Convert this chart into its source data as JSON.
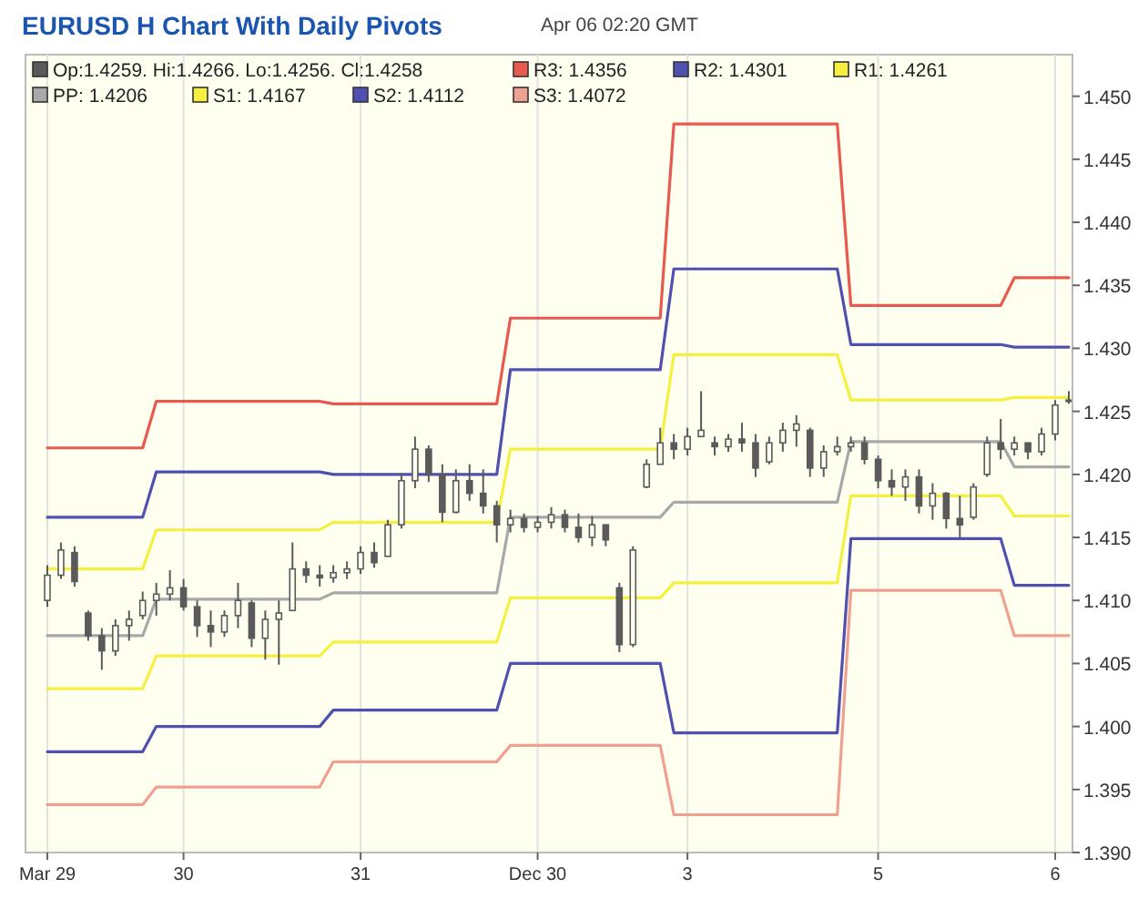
{
  "chart_data": {
    "type": "candlestick",
    "title": "EURUSD H Chart With Daily Pivots",
    "subtitle": "Apr 06 02:20 GMT",
    "categories": [
      "Mar 29",
      null,
      null,
      null,
      null,
      null,
      null,
      null,
      null,
      null,
      "30",
      null,
      null,
      null,
      null,
      null,
      null,
      null,
      null,
      null,
      null,
      null,
      null,
      "31",
      null,
      null,
      null,
      null,
      null,
      null,
      null,
      null,
      null,
      null,
      null,
      null,
      "Dec 30",
      null,
      null,
      null,
      null,
      null,
      null,
      null,
      null,
      null,
      null,
      "3",
      null,
      null,
      null,
      null,
      null,
      null,
      null,
      null,
      null,
      null,
      null,
      null,
      null,
      "5",
      null,
      null,
      null,
      null,
      null,
      null,
      null,
      null,
      null,
      null,
      null,
      null,
      "6",
      null
    ],
    "ylim": [
      1.39,
      1.4533
    ],
    "yticks": [
      {
        "value": 1.39,
        "label": "1.390"
      },
      {
        "value": 1.395,
        "label": "1.395"
      },
      {
        "value": 1.4,
        "label": "1.400"
      },
      {
        "value": 1.405,
        "label": "1.405"
      },
      {
        "value": 1.41,
        "label": "1.410"
      },
      {
        "value": 1.415,
        "label": "1.415"
      },
      {
        "value": 1.42,
        "label": "1.420"
      },
      {
        "value": 1.425,
        "label": "1.425"
      },
      {
        "value": 1.43,
        "label": "1.430"
      },
      {
        "value": 1.435,
        "label": "1.435"
      },
      {
        "value": 1.44,
        "label": "1.440"
      },
      {
        "value": 1.445,
        "label": "1.445"
      },
      {
        "value": 1.45,
        "label": "1.450"
      }
    ],
    "grid": "x",
    "legend": "top",
    "series": [
      {
        "name": "Op:1.4259. Hi:1.4266. Lo:1.4256. Cl:1.4258",
        "color": "#5a5a5a",
        "ohlc": [
          [
            1.41,
            1.4128,
            1.4095,
            1.412
          ],
          [
            1.412,
            1.4146,
            1.4117,
            1.414
          ],
          [
            1.4138,
            1.4143,
            1.4111,
            1.4115
          ],
          [
            1.409,
            1.4092,
            1.4068,
            1.4072
          ],
          [
            1.4072,
            1.4078,
            1.4045,
            1.406
          ],
          [
            1.406,
            1.4085,
            1.4056,
            1.408
          ],
          [
            1.408,
            1.4092,
            1.4068,
            1.4085
          ],
          [
            1.4088,
            1.4107,
            1.4085,
            1.41
          ],
          [
            1.41,
            1.4114,
            1.4088,
            1.4105
          ],
          [
            1.4105,
            1.4124,
            1.41,
            1.411
          ],
          [
            1.411,
            1.4117,
            1.4092,
            1.4095
          ],
          [
            1.4095,
            1.41,
            1.4071,
            1.408
          ],
          [
            1.408,
            1.4092,
            1.4063,
            1.4075
          ],
          [
            1.4075,
            1.4092,
            1.4071,
            1.4088
          ],
          [
            1.4088,
            1.4114,
            1.4078,
            1.41
          ],
          [
            1.4098,
            1.41,
            1.4063,
            1.407
          ],
          [
            1.407,
            1.4092,
            1.4053,
            1.4085
          ],
          [
            1.4085,
            1.41,
            1.4049,
            1.409
          ],
          [
            1.4092,
            1.4146,
            1.4092,
            1.4125
          ],
          [
            1.4125,
            1.4131,
            1.4114,
            1.412
          ],
          [
            1.412,
            1.4128,
            1.4111,
            1.4118
          ],
          [
            1.4118,
            1.4128,
            1.4114,
            1.4122
          ],
          [
            1.4122,
            1.4131,
            1.4117,
            1.4125
          ],
          [
            1.4125,
            1.4143,
            1.4121,
            1.4138
          ],
          [
            1.4138,
            1.4146,
            1.4126,
            1.413
          ],
          [
            1.4135,
            1.4164,
            1.4135,
            1.416
          ],
          [
            1.416,
            1.4201,
            1.4157,
            1.4195
          ],
          [
            1.4195,
            1.423,
            1.4189,
            1.422
          ],
          [
            1.422,
            1.4223,
            1.4194,
            1.42
          ],
          [
            1.42,
            1.4208,
            1.4162,
            1.417
          ],
          [
            1.417,
            1.4204,
            1.4169,
            1.4195
          ],
          [
            1.4195,
            1.4208,
            1.4179,
            1.4185
          ],
          [
            1.4185,
            1.4204,
            1.4169,
            1.4175
          ],
          [
            1.4175,
            1.4179,
            1.4146,
            1.416
          ],
          [
            1.416,
            1.4172,
            1.4154,
            1.4165
          ],
          [
            1.4165,
            1.4169,
            1.4154,
            1.4158
          ],
          [
            1.4158,
            1.4167,
            1.4154,
            1.4162
          ],
          [
            1.4162,
            1.4174,
            1.4157,
            1.4168
          ],
          [
            1.4168,
            1.4172,
            1.4154,
            1.4158
          ],
          [
            1.4158,
            1.4169,
            1.4146,
            1.415
          ],
          [
            1.415,
            1.4167,
            1.4143,
            1.416
          ],
          [
            1.416,
            1.416,
            1.4143,
            1.4148
          ],
          [
            1.411,
            1.4114,
            1.4059,
            1.4065
          ],
          [
            1.4065,
            1.4143,
            1.4063,
            1.414
          ],
          [
            1.419,
            1.4212,
            1.4189,
            1.4208
          ],
          [
            1.4208,
            1.4237,
            1.4208,
            1.4225
          ],
          [
            1.4225,
            1.4232,
            1.4212,
            1.422
          ],
          [
            1.422,
            1.4237,
            1.4215,
            1.423
          ],
          [
            1.423,
            1.4266,
            1.423,
            1.4235
          ],
          [
            1.4225,
            1.423,
            1.4215,
            1.4222
          ],
          [
            1.4222,
            1.4232,
            1.4218,
            1.4228
          ],
          [
            1.4228,
            1.4241,
            1.4218,
            1.4225
          ],
          [
            1.4225,
            1.4232,
            1.4198,
            1.4205
          ],
          [
            1.421,
            1.423,
            1.4208,
            1.4225
          ],
          [
            1.4225,
            1.4241,
            1.4218,
            1.4235
          ],
          [
            1.4235,
            1.4247,
            1.4222,
            1.424
          ],
          [
            1.4235,
            1.4237,
            1.4198,
            1.4205
          ],
          [
            1.4205,
            1.4223,
            1.4198,
            1.4218
          ],
          [
            1.4218,
            1.423,
            1.4215,
            1.4222
          ],
          [
            1.4222,
            1.423,
            1.4218,
            1.4225
          ],
          [
            1.4225,
            1.423,
            1.4208,
            1.4212
          ],
          [
            1.4212,
            1.4215,
            1.4189,
            1.4195
          ],
          [
            1.4195,
            1.4204,
            1.4183,
            1.419
          ],
          [
            1.419,
            1.4204,
            1.4179,
            1.4198
          ],
          [
            1.4198,
            1.4204,
            1.4169,
            1.4175
          ],
          [
            1.4175,
            1.4193,
            1.4164,
            1.4185
          ],
          [
            1.4185,
            1.4186,
            1.4157,
            1.4165
          ],
          [
            1.4165,
            1.4183,
            1.415,
            1.416
          ],
          [
            1.4166,
            1.4193,
            1.4164,
            1.419
          ],
          [
            1.42,
            1.423,
            1.4198,
            1.4225
          ],
          [
            1.4225,
            1.4244,
            1.4212,
            1.422
          ],
          [
            1.422,
            1.423,
            1.4215,
            1.4225
          ],
          [
            1.4225,
            1.4225,
            1.4212,
            1.4218
          ],
          [
            1.4218,
            1.4237,
            1.4215,
            1.4232
          ],
          [
            1.4232,
            1.4259,
            1.4227,
            1.4255
          ],
          [
            1.4259,
            1.4266,
            1.4256,
            1.4258
          ]
        ]
      },
      {
        "type": "line",
        "name": "R3: 1.4356",
        "color": "#e85a50",
        "values": [
          1.4221,
          1.4221,
          1.4221,
          1.4221,
          1.4221,
          1.4221,
          1.4221,
          1.4221,
          1.4258,
          1.4258,
          1.4258,
          1.4258,
          1.4258,
          1.4258,
          1.4258,
          1.4258,
          1.4258,
          1.4258,
          1.4258,
          1.4258,
          1.4258,
          1.4256,
          1.4256,
          1.4256,
          1.4256,
          1.4256,
          1.4256,
          1.4256,
          1.4256,
          1.4256,
          1.4256,
          1.4256,
          1.4256,
          1.4256,
          1.4324,
          1.4324,
          1.4324,
          1.4324,
          1.4324,
          1.4324,
          1.4324,
          1.4324,
          1.4324,
          1.4324,
          1.4324,
          1.4324,
          1.4478,
          1.4478,
          1.4478,
          1.4478,
          1.4478,
          1.4478,
          1.4478,
          1.4478,
          1.4478,
          1.4478,
          1.4478,
          1.4478,
          1.4478,
          1.4334,
          1.4334,
          1.4334,
          1.4334,
          1.4334,
          1.4334,
          1.4334,
          1.4334,
          1.4334,
          1.4334,
          1.4334,
          1.4334,
          1.4356,
          1.4356,
          1.4356,
          1.4356,
          1.4356
        ]
      },
      {
        "type": "line",
        "name": "R2: 1.4301",
        "color": "#5050b0",
        "values": [
          1.4166,
          1.4166,
          1.4166,
          1.4166,
          1.4166,
          1.4166,
          1.4166,
          1.4166,
          1.4202,
          1.4202,
          1.4202,
          1.4202,
          1.4202,
          1.4202,
          1.4202,
          1.4202,
          1.4202,
          1.4202,
          1.4202,
          1.4202,
          1.4202,
          1.42,
          1.42,
          1.42,
          1.42,
          1.42,
          1.42,
          1.42,
          1.42,
          1.42,
          1.42,
          1.42,
          1.42,
          1.42,
          1.4283,
          1.4283,
          1.4283,
          1.4283,
          1.4283,
          1.4283,
          1.4283,
          1.4283,
          1.4283,
          1.4283,
          1.4283,
          1.4283,
          1.4363,
          1.4363,
          1.4363,
          1.4363,
          1.4363,
          1.4363,
          1.4363,
          1.4363,
          1.4363,
          1.4363,
          1.4363,
          1.4363,
          1.4363,
          1.4303,
          1.4303,
          1.4303,
          1.4303,
          1.4303,
          1.4303,
          1.4303,
          1.4303,
          1.4303,
          1.4303,
          1.4303,
          1.4303,
          1.4301,
          1.4301,
          1.4301,
          1.4301,
          1.4301
        ]
      },
      {
        "type": "line",
        "name": "R1: 1.4261",
        "color": "#f5f040",
        "values": [
          1.4125,
          1.4125,
          1.4125,
          1.4125,
          1.4125,
          1.4125,
          1.4125,
          1.4125,
          1.4156,
          1.4156,
          1.4156,
          1.4156,
          1.4156,
          1.4156,
          1.4156,
          1.4156,
          1.4156,
          1.4156,
          1.4156,
          1.4156,
          1.4156,
          1.4162,
          1.4162,
          1.4162,
          1.4162,
          1.4162,
          1.4162,
          1.4162,
          1.4162,
          1.4162,
          1.4162,
          1.4162,
          1.4162,
          1.4162,
          1.422,
          1.422,
          1.422,
          1.422,
          1.422,
          1.422,
          1.422,
          1.422,
          1.422,
          1.422,
          1.422,
          1.422,
          1.4295,
          1.4295,
          1.4295,
          1.4295,
          1.4295,
          1.4295,
          1.4295,
          1.4295,
          1.4295,
          1.4295,
          1.4295,
          1.4295,
          1.4295,
          1.4259,
          1.4259,
          1.4259,
          1.4259,
          1.4259,
          1.4259,
          1.4259,
          1.4259,
          1.4259,
          1.4259,
          1.4259,
          1.4259,
          1.4261,
          1.4261,
          1.4261,
          1.4261,
          1.4261
        ]
      },
      {
        "type": "line",
        "name": "PP: 1.4206",
        "color": "#a8a8a8",
        "values": [
          1.4072,
          1.4072,
          1.4072,
          1.4072,
          1.4072,
          1.4072,
          1.4072,
          1.4072,
          1.4101,
          1.4101,
          1.4101,
          1.4101,
          1.4101,
          1.4101,
          1.4101,
          1.4101,
          1.4101,
          1.4101,
          1.4101,
          1.4101,
          1.4101,
          1.4106,
          1.4106,
          1.4106,
          1.4106,
          1.4106,
          1.4106,
          1.4106,
          1.4106,
          1.4106,
          1.4106,
          1.4106,
          1.4106,
          1.4106,
          1.4166,
          1.4166,
          1.4166,
          1.4166,
          1.4166,
          1.4166,
          1.4166,
          1.4166,
          1.4166,
          1.4166,
          1.4166,
          1.4166,
          1.4178,
          1.4178,
          1.4178,
          1.4178,
          1.4178,
          1.4178,
          1.4178,
          1.4178,
          1.4178,
          1.4178,
          1.4178,
          1.4178,
          1.4178,
          1.4226,
          1.4226,
          1.4226,
          1.4226,
          1.4226,
          1.4226,
          1.4226,
          1.4226,
          1.4226,
          1.4226,
          1.4226,
          1.4226,
          1.4206,
          1.4206,
          1.4206,
          1.4206,
          1.4206
        ]
      },
      {
        "type": "line",
        "name": "S1: 1.4167",
        "color": "#f5f040",
        "values": [
          1.403,
          1.403,
          1.403,
          1.403,
          1.403,
          1.403,
          1.403,
          1.403,
          1.4056,
          1.4056,
          1.4056,
          1.4056,
          1.4056,
          1.4056,
          1.4056,
          1.4056,
          1.4056,
          1.4056,
          1.4056,
          1.4056,
          1.4056,
          1.4067,
          1.4067,
          1.4067,
          1.4067,
          1.4067,
          1.4067,
          1.4067,
          1.4067,
          1.4067,
          1.4067,
          1.4067,
          1.4067,
          1.4067,
          1.4102,
          1.4102,
          1.4102,
          1.4102,
          1.4102,
          1.4102,
          1.4102,
          1.4102,
          1.4102,
          1.4102,
          1.4102,
          1.4102,
          1.4114,
          1.4114,
          1.4114,
          1.4114,
          1.4114,
          1.4114,
          1.4114,
          1.4114,
          1.4114,
          1.4114,
          1.4114,
          1.4114,
          1.4114,
          1.4183,
          1.4183,
          1.4183,
          1.4183,
          1.4183,
          1.4183,
          1.4183,
          1.4183,
          1.4183,
          1.4183,
          1.4183,
          1.4183,
          1.4167,
          1.4167,
          1.4167,
          1.4167,
          1.4167
        ]
      },
      {
        "type": "line",
        "name": "S2: 1.4112",
        "color": "#5050b0",
        "values": [
          1.398,
          1.398,
          1.398,
          1.398,
          1.398,
          1.398,
          1.398,
          1.398,
          1.4,
          1.4,
          1.4,
          1.4,
          1.4,
          1.4,
          1.4,
          1.4,
          1.4,
          1.4,
          1.4,
          1.4,
          1.4,
          1.4013,
          1.4013,
          1.4013,
          1.4013,
          1.4013,
          1.4013,
          1.4013,
          1.4013,
          1.4013,
          1.4013,
          1.4013,
          1.4013,
          1.4013,
          1.405,
          1.405,
          1.405,
          1.405,
          1.405,
          1.405,
          1.405,
          1.405,
          1.405,
          1.405,
          1.405,
          1.405,
          1.3995,
          1.3995,
          1.3995,
          1.3995,
          1.3995,
          1.3995,
          1.3995,
          1.3995,
          1.3995,
          1.3995,
          1.3995,
          1.3995,
          1.3995,
          1.4149,
          1.4149,
          1.4149,
          1.4149,
          1.4149,
          1.4149,
          1.4149,
          1.4149,
          1.4149,
          1.4149,
          1.4149,
          1.4149,
          1.4112,
          1.4112,
          1.4112,
          1.4112,
          1.4112
        ]
      },
      {
        "type": "line",
        "name": "S3: 1.4072",
        "color": "#f0a090",
        "values": [
          1.3938,
          1.3938,
          1.3938,
          1.3938,
          1.3938,
          1.3938,
          1.3938,
          1.3938,
          1.3952,
          1.3952,
          1.3952,
          1.3952,
          1.3952,
          1.3952,
          1.3952,
          1.3952,
          1.3952,
          1.3952,
          1.3952,
          1.3952,
          1.3952,
          1.3972,
          1.3972,
          1.3972,
          1.3972,
          1.3972,
          1.3972,
          1.3972,
          1.3972,
          1.3972,
          1.3972,
          1.3972,
          1.3972,
          1.3972,
          1.3985,
          1.3985,
          1.3985,
          1.3985,
          1.3985,
          1.3985,
          1.3985,
          1.3985,
          1.3985,
          1.3985,
          1.3985,
          1.3985,
          1.393,
          1.393,
          1.393,
          1.393,
          1.393,
          1.393,
          1.393,
          1.393,
          1.393,
          1.393,
          1.393,
          1.393,
          1.393,
          1.4108,
          1.4108,
          1.4108,
          1.4108,
          1.4108,
          1.4108,
          1.4108,
          1.4108,
          1.4108,
          1.4108,
          1.4108,
          1.4108,
          1.4072,
          1.4072,
          1.4072,
          1.4072,
          1.4072
        ]
      }
    ]
  }
}
